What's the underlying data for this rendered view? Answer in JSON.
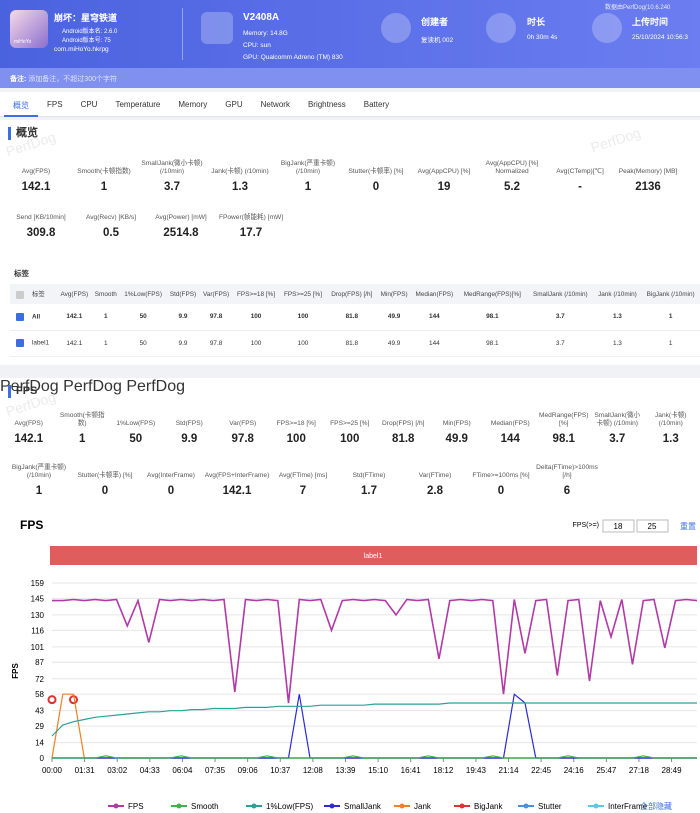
{
  "header": {
    "game_name": "崩坏：星穹铁道",
    "android_version_name": "Android版本名: 2.6.0",
    "android_version_code": "Android版本号: 75",
    "package": "com.miHoYo.hkrpg",
    "icon_text": "miHoYo",
    "device_model": "V2408A",
    "memory": "Memory: 14.8G",
    "cpu": "CPU: sun",
    "gpu": "GPU: Qualcomm Adreno (TM) 830",
    "creator_label": "创建者",
    "creator": "复读机 002",
    "duration_label": "时长",
    "duration": "0h 30m 4s",
    "upload_label": "上传时间",
    "upload_time": "25/10/2024 10:56:3",
    "source": "数据由PerfDog(10.6.240"
  },
  "note": {
    "label": "备注:",
    "placeholder": "添加备注，不超过300个字符"
  },
  "tabs": [
    "概览",
    "FPS",
    "CPU",
    "Temperature",
    "Memory",
    "GPU",
    "Network",
    "Brightness",
    "Battery"
  ],
  "watermark": "PerfDog",
  "overview": {
    "title": "概览",
    "metrics": [
      [
        {
          "label": "Avg(FPS)",
          "value": 142.1
        },
        {
          "label": "Smooth(卡顿指数)",
          "value": 1
        },
        {
          "label": "SmallJank(微小卡顿) (/10min)",
          "value": 3.7
        },
        {
          "label": "Jank(卡顿) (/10min)",
          "value": 1.3
        },
        {
          "label": "BigJank(严重卡顿) (/10min)",
          "value": 1
        },
        {
          "label": "Stutter(卡顿率) [%]",
          "value": 0
        },
        {
          "label": "Avg(AppCPU) [%]",
          "value": 19
        },
        {
          "label": "Avg(AppCPU) [%] Normalized",
          "value": 5.2
        },
        {
          "label": "Avg(CTemp)[℃]",
          "value": "-"
        },
        {
          "label": "Peak(Memory) [MB]",
          "value": 2136
        }
      ],
      [
        {
          "label": "Send [KB/10min]",
          "value": 309.8
        },
        {
          "label": "Avg(Recv) [KB/s]",
          "value": 0.5
        },
        {
          "label": "Avg(Power) [mW]",
          "value": 2514.8
        },
        {
          "label": "FPower(帧能耗) [mW]",
          "value": 17.7
        }
      ]
    ]
  },
  "tags": {
    "title": "标签",
    "columns": [
      "标签",
      "Avg(FPS)",
      "Smooth",
      "1%Low(FPS)",
      "Std(FPS)",
      "Var(FPS)",
      "FPS>=18 [%]",
      "FPS>=25 [%]",
      "Drop(FPS) [/h]",
      "Min(FPS)",
      "Median(FPS)",
      "MedRange(FPS)[%]",
      "SmallJank (/10min)",
      "Jank (/10min)",
      "BigJank (/10min)"
    ],
    "rows": [
      {
        "name": "All",
        "values": [
          142.1,
          1,
          50,
          9.9,
          97.8,
          100,
          100,
          81.8,
          49.9,
          144,
          98.1,
          3.7,
          1.3,
          1
        ]
      },
      {
        "name": "label1",
        "values": [
          142.1,
          1,
          50,
          9.9,
          97.8,
          100,
          100,
          81.8,
          49.9,
          144,
          98.1,
          3.7,
          1.3,
          1
        ]
      }
    ]
  },
  "fps_section": {
    "title": "FPS",
    "metrics": [
      [
        {
          "label": "Avg(FPS)",
          "value": 142.1
        },
        {
          "label": "Smooth(卡顿指数)",
          "value": 1
        },
        {
          "label": "1%Low(FPS)",
          "value": 50
        },
        {
          "label": "Std(FPS)",
          "value": 9.9
        },
        {
          "label": "Var(FPS)",
          "value": 97.8
        },
        {
          "label": "FPS>=18 [%]",
          "value": 100
        },
        {
          "label": "FPS>=25 [%]",
          "value": 100
        },
        {
          "label": "Drop(FPS) [/h]",
          "value": 81.8
        },
        {
          "label": "Min(FPS)",
          "value": 49.9
        },
        {
          "label": "Median(FPS)",
          "value": 144
        },
        {
          "label": "MedRange(FPS)[%]",
          "value": 98.1
        },
        {
          "label": "SmallJank(微小卡顿) (/10min)",
          "value": 3.7
        },
        {
          "label": "Jank(卡顿) (/10min)",
          "value": 1.3
        }
      ],
      [
        {
          "label": "BigJank(严重卡顿) (/10min)",
          "value": 1
        },
        {
          "label": "Stutter(卡顿率) [%]",
          "value": 0
        },
        {
          "label": "Avg(InterFrame)",
          "value": 0
        },
        {
          "label": "Avg(FPS+InterFrame)",
          "value": 142.1
        },
        {
          "label": "Avg(FTime) [ms]",
          "value": 7
        },
        {
          "label": "Std(FTime)",
          "value": 1.7
        },
        {
          "label": "Var(FTime)",
          "value": 2.8
        },
        {
          "label": "FTime>=100ms [%]",
          "value": 0
        },
        {
          "label": "Delta(FTime)>100ms [/h]",
          "value": 6
        }
      ]
    ]
  },
  "chart_data": {
    "type": "line",
    "title": "FPS",
    "y_label": "FPS",
    "threshold_label": "FPS(>=)",
    "thresholds": [
      18,
      25
    ],
    "reset": "重置",
    "band_label": "label1",
    "hide_all": "全部隐藏",
    "x": [
      0,
      30,
      60,
      90,
      120,
      150,
      180,
      210,
      240,
      270,
      300,
      330,
      360,
      390,
      420,
      450,
      480,
      510,
      540,
      570,
      600,
      630,
      660,
      690,
      720,
      750,
      780,
      810,
      840,
      870,
      900,
      930,
      960,
      990,
      1020,
      1050,
      1080,
      1110,
      1140,
      1170,
      1200,
      1230,
      1260,
      1290,
      1320,
      1350,
      1380,
      1410,
      1440,
      1470,
      1500,
      1530,
      1560,
      1590,
      1620,
      1650,
      1680,
      1710,
      1740,
      1770,
      1800
    ],
    "xlim": [
      0,
      1800
    ],
    "xticks": [
      {
        "value": 0,
        "label": "00:00"
      },
      {
        "value": 91,
        "label": "01:31"
      },
      {
        "value": 182,
        "label": "03:02"
      },
      {
        "value": 273,
        "label": "04:33"
      },
      {
        "value": 364,
        "label": "06:04"
      },
      {
        "value": 455,
        "label": "07:35"
      },
      {
        "value": 546,
        "label": "09:06"
      },
      {
        "value": 637,
        "label": "10:37"
      },
      {
        "value": 728,
        "label": "12:08"
      },
      {
        "value": 819,
        "label": "13:39"
      },
      {
        "value": 910,
        "label": "15:10"
      },
      {
        "value": 1001,
        "label": "16:41"
      },
      {
        "value": 1092,
        "label": "18:12"
      },
      {
        "value": 1183,
        "label": "19:43"
      },
      {
        "value": 1274,
        "label": "21:14"
      },
      {
        "value": 1365,
        "label": "22:45"
      },
      {
        "value": 1456,
        "label": "24:16"
      },
      {
        "value": 1547,
        "label": "25:47"
      },
      {
        "value": 1638,
        "label": "27:18"
      },
      {
        "value": 1729,
        "label": "28:49"
      }
    ],
    "ylim": [
      0,
      159
    ],
    "yticks": [
      0,
      14,
      29,
      43,
      58,
      72,
      87,
      101,
      116,
      130,
      145,
      159
    ],
    "grid": true,
    "series": [
      {
        "name": "FPS",
        "color": "#b23aa6",
        "values": [
          143,
          143,
          144,
          143,
          144,
          143,
          144,
          120,
          143,
          105,
          144,
          143,
          144,
          143,
          144,
          143,
          144,
          60,
          144,
          143,
          144,
          143,
          50,
          144,
          143,
          144,
          116,
          143,
          144,
          143,
          144,
          143,
          130,
          144,
          143,
          144,
          90,
          143,
          144,
          143,
          144,
          143,
          58,
          144,
          95,
          143,
          144,
          75,
          143,
          144,
          70,
          143,
          110,
          144,
          85,
          143,
          144,
          100,
          143,
          144,
          143
        ]
      },
      {
        "name": "Smooth",
        "color": "#3cb44b",
        "values": [
          0,
          0,
          0,
          0,
          0,
          2,
          0,
          0,
          0,
          0,
          0,
          0,
          2,
          0,
          0,
          0,
          0,
          0,
          0,
          0,
          2,
          0,
          0,
          0,
          0,
          0,
          0,
          0,
          2,
          0,
          0,
          0,
          0,
          0,
          0,
          2,
          0,
          0,
          0,
          0,
          0,
          2,
          0,
          0,
          0,
          0,
          0,
          0,
          2,
          0,
          0,
          0,
          0,
          0,
          0,
          2,
          0,
          0,
          0,
          0,
          0
        ]
      },
      {
        "name": "1%Low(FPS)",
        "color": "#2aa198",
        "values": [
          20,
          30,
          33,
          35,
          37,
          38,
          39,
          40,
          41,
          42,
          42,
          43,
          43,
          44,
          44,
          45,
          45,
          45,
          46,
          46,
          46,
          47,
          47,
          47,
          47,
          48,
          48,
          48,
          48,
          48,
          49,
          49,
          49,
          49,
          49,
          49,
          49,
          50,
          50,
          50,
          50,
          50,
          50,
          50,
          50,
          50,
          50,
          50,
          50,
          50,
          50,
          50,
          50,
          50,
          50,
          50,
          50,
          50,
          50,
          50,
          50
        ]
      },
      {
        "name": "SmallJank",
        "color": "#2b2bd6",
        "values": [
          0,
          0,
          0,
          0,
          0,
          0,
          0,
          0,
          0,
          0,
          0,
          0,
          0,
          0,
          0,
          0,
          0,
          0,
          0,
          0,
          0,
          0,
          0,
          58,
          0,
          0,
          0,
          0,
          0,
          0,
          0,
          0,
          0,
          0,
          0,
          0,
          0,
          0,
          0,
          0,
          0,
          0,
          0,
          58,
          50,
          0,
          0,
          0,
          0,
          0,
          0,
          0,
          0,
          0,
          0,
          0,
          0,
          0,
          0,
          0,
          0
        ]
      },
      {
        "name": "Jank",
        "color": "#f08020",
        "values": [
          0,
          58,
          58,
          0,
          0,
          0,
          0,
          0,
          0,
          0,
          0,
          0,
          0,
          0,
          0,
          0,
          0,
          0,
          0,
          0,
          0,
          0,
          0,
          0,
          0,
          0,
          0,
          0,
          0,
          0,
          0,
          0,
          0,
          0,
          0,
          0,
          0,
          0,
          0,
          0,
          0,
          0,
          0,
          0,
          0,
          0,
          0,
          0,
          0,
          0,
          0,
          0,
          0,
          0,
          0,
          0,
          0,
          0,
          0,
          0,
          0
        ]
      },
      {
        "name": "BigJank",
        "color": "#e03030",
        "values": [
          53,
          null,
          53,
          null,
          null,
          null,
          null,
          null,
          null,
          null,
          null,
          null,
          null,
          null,
          null,
          null,
          null,
          null,
          null,
          null,
          null,
          null,
          null,
          null,
          null,
          null,
          null,
          null,
          null,
          null,
          null,
          null,
          null,
          null,
          null,
          null,
          null,
          null,
          null,
          null,
          null,
          null,
          null,
          null,
          null,
          null,
          null,
          null,
          null,
          null,
          null,
          null,
          null,
          null,
          null,
          null,
          null,
          null,
          null,
          null,
          null
        ]
      },
      {
        "name": "Stutter",
        "color": "#4a90e2",
        "values": [
          0,
          0,
          0,
          0,
          0,
          0,
          0,
          0,
          0,
          0,
          0,
          0,
          0,
          0,
          0,
          0,
          0,
          0,
          0,
          0,
          0,
          0,
          0,
          0,
          0,
          0,
          0,
          0,
          0,
          0,
          0,
          0,
          0,
          0,
          0,
          0,
          0,
          0,
          0,
          0,
          0,
          0,
          0,
          0,
          0,
          0,
          0,
          0,
          0,
          0,
          0,
          0,
          0,
          0,
          0,
          0,
          0,
          0,
          0,
          0,
          0
        ]
      },
      {
        "name": "InterFrame",
        "color": "#5bc8e8",
        "values": [
          0,
          0,
          0,
          0,
          0,
          0,
          0,
          0,
          0,
          0,
          0,
          0,
          0,
          0,
          0,
          0,
          0,
          0,
          0,
          0,
          0,
          0,
          0,
          0,
          0,
          0,
          0,
          0,
          0,
          0,
          0,
          0,
          0,
          0,
          0,
          0,
          0,
          0,
          0,
          0,
          0,
          0,
          0,
          0,
          0,
          0,
          0,
          0,
          0,
          0,
          0,
          0,
          0,
          0,
          0,
          0,
          0,
          0,
          0,
          0,
          0
        ]
      }
    ]
  }
}
